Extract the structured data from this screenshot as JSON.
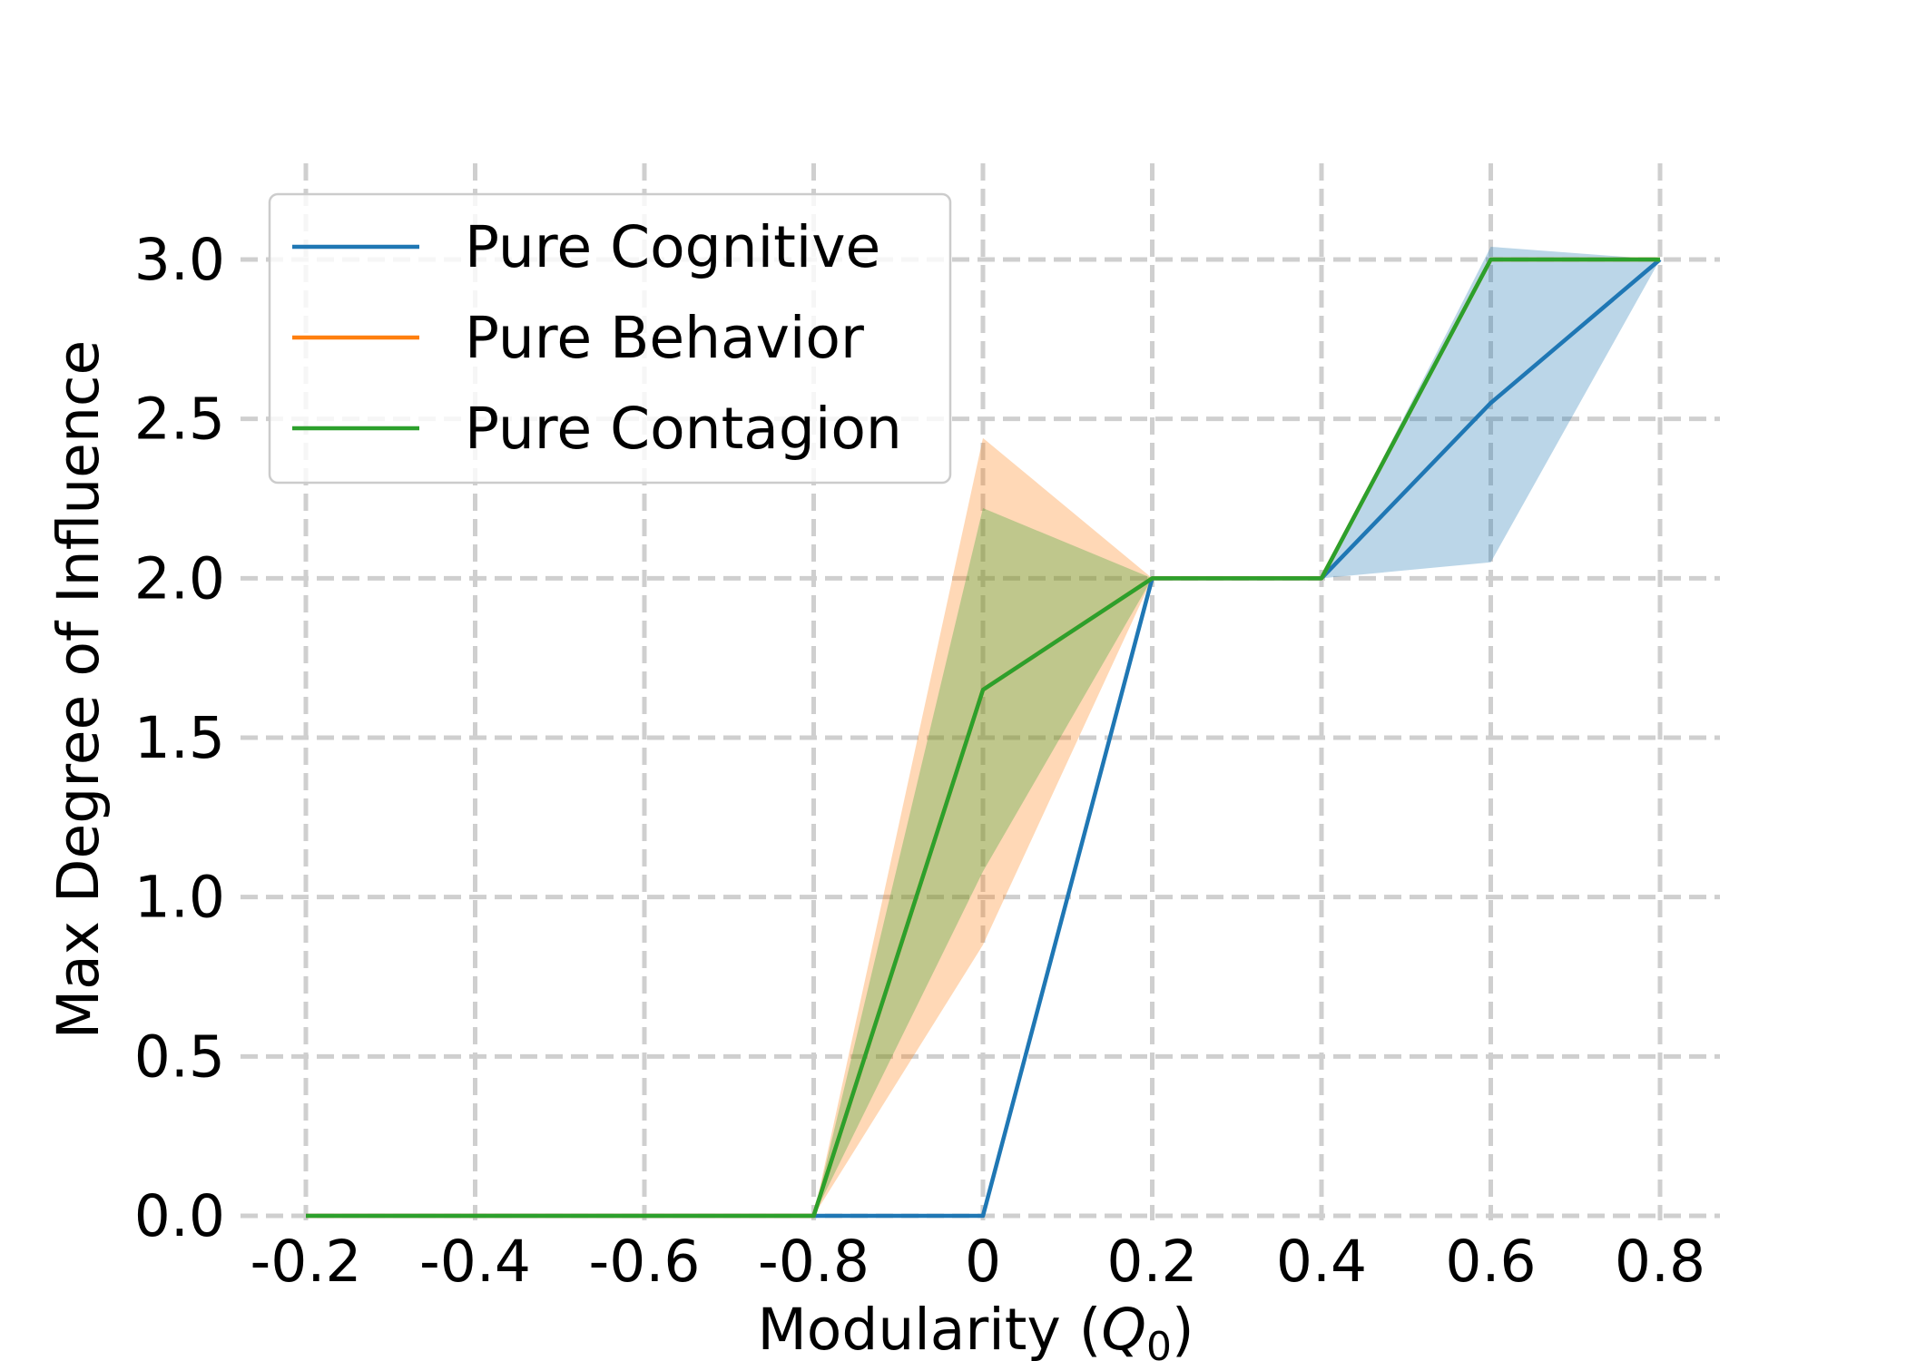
{
  "chart_data": {
    "type": "line",
    "title": "",
    "xlabel_main": "Modularity (",
    "xlabel_symbol": "Q",
    "xlabel_subscript": "0",
    "xlabel_close": ")",
    "ylabel": "Max Degree of Influence",
    "categories": [
      "-0.2",
      "-0.4",
      "-0.6",
      "-0.8",
      "0",
      "0.2",
      "0.4",
      "0.6",
      "0.8"
    ],
    "y_ticks": [
      "0.0",
      "0.5",
      "1.0",
      "1.5",
      "2.0",
      "2.5",
      "3.0"
    ],
    "ylim": [
      0,
      3
    ],
    "grid": true,
    "legend_position": "top-left",
    "series": [
      {
        "name": "Pure Cognitive",
        "color": "#1f77b4",
        "values": [
          0,
          0,
          0,
          0,
          0,
          2.0,
          2.0,
          2.55,
          3.0
        ],
        "band_upper": [
          0,
          0,
          0,
          0,
          0,
          2.0,
          2.0,
          3.04,
          3.0
        ],
        "band_lower": [
          0,
          0,
          0,
          0,
          0,
          2.0,
          2.0,
          2.05,
          3.0
        ]
      },
      {
        "name": "Pure Behavior",
        "color": "#ff7f0e",
        "values": [
          0,
          0,
          0,
          0,
          1.65,
          2.0,
          2.0,
          3.0,
          3.0
        ],
        "band_upper": [
          0,
          0,
          0,
          0,
          2.44,
          2.0,
          2.0,
          3.0,
          3.0
        ],
        "band_lower": [
          0,
          0,
          0,
          0,
          0.85,
          2.0,
          2.0,
          3.0,
          3.0
        ]
      },
      {
        "name": "Pure Contagion",
        "color": "#2ca02c",
        "values": [
          0,
          0,
          0,
          0,
          1.65,
          2.0,
          2.0,
          3.0,
          3.0
        ],
        "band_upper": [
          0,
          0,
          0,
          0,
          2.22,
          2.0,
          2.0,
          3.0,
          3.0
        ],
        "band_lower": [
          0,
          0,
          0,
          0,
          1.08,
          2.0,
          2.0,
          3.0,
          3.0
        ]
      }
    ]
  }
}
